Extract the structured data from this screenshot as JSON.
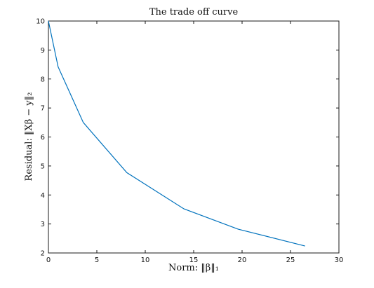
{
  "chart_data": {
    "type": "line",
    "title": "The trade off curve",
    "xlabel": "Norm: ‖β‖₁",
    "ylabel": "Residual: ‖Xβ − y‖₂",
    "xlim": [
      0,
      30
    ],
    "ylim": [
      2,
      10
    ],
    "xticks": [
      0,
      5,
      10,
      15,
      20,
      25,
      30
    ],
    "yticks": [
      2,
      3,
      4,
      5,
      6,
      7,
      8,
      9,
      10
    ],
    "grid": false,
    "series": [
      {
        "color": "#0072BD",
        "x": [
          0,
          1.0,
          3.6,
          8.1,
          14.0,
          19.6,
          26.5
        ],
        "y": [
          10,
          8.42,
          6.5,
          4.77,
          3.52,
          2.82,
          2.24
        ]
      }
    ]
  }
}
